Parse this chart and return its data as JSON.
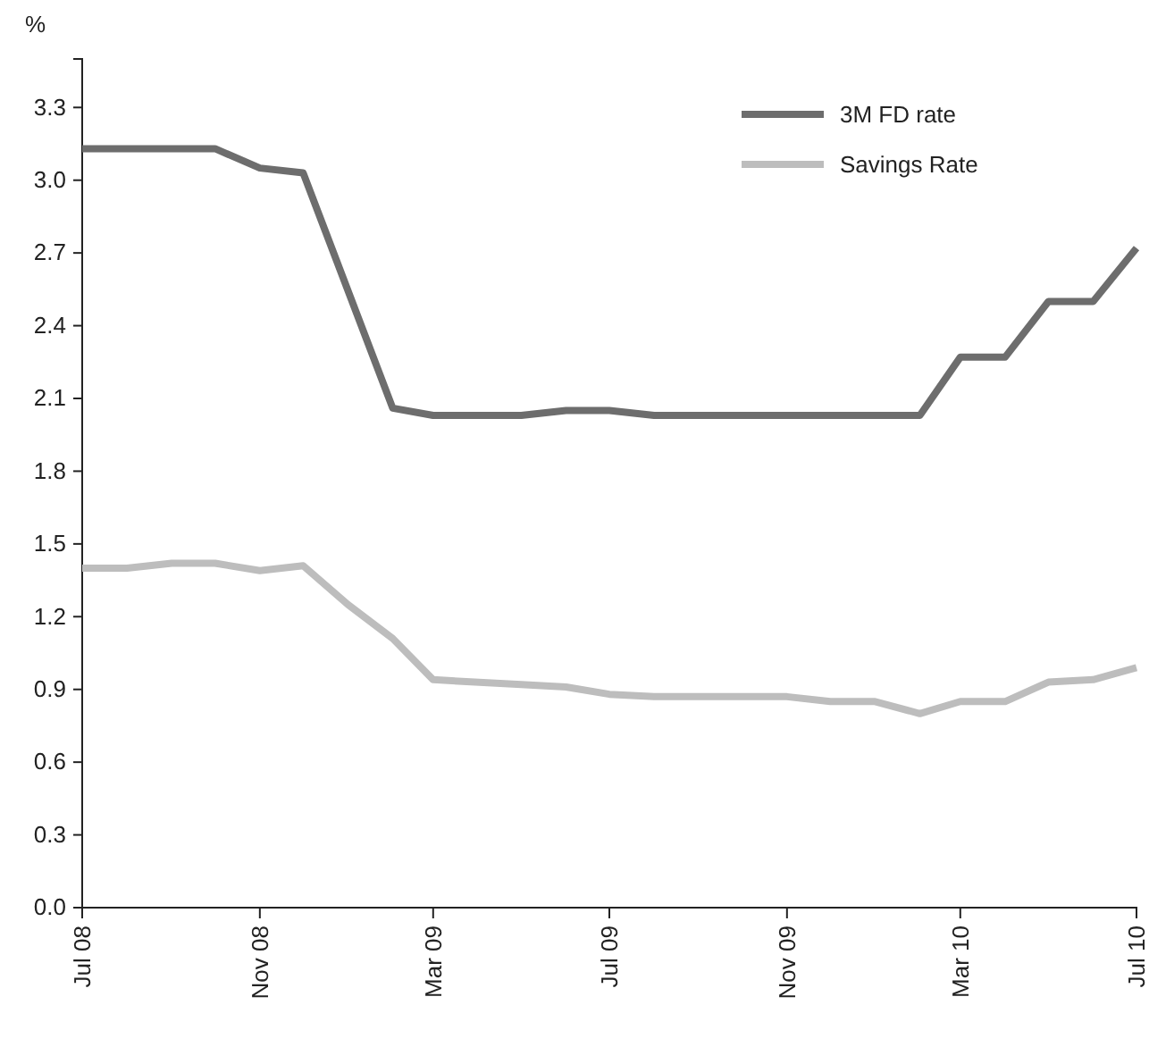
{
  "chart_data": {
    "type": "line",
    "ylabel": "%",
    "legend": "top right",
    "line_style": "solid",
    "xlim": [
      "2008-07",
      "2010-07"
    ],
    "xticks": [
      {
        "value": "2008-07",
        "label": "Jul 08"
      },
      {
        "value": "2008-11",
        "label": "Nov 08"
      },
      {
        "value": "2009-03",
        "label": "Mar 09"
      },
      {
        "value": "2009-07",
        "label": "Jul 09"
      },
      {
        "value": "2009-11",
        "label": "Nov 09"
      },
      {
        "value": "2010-03",
        "label": "Mar 10"
      },
      {
        "value": "2010-07",
        "label": "Jul 10"
      }
    ],
    "ylim": [
      0,
      3.5
    ],
    "yticks": [
      {
        "value": 0,
        "label": "0.0"
      },
      {
        "value": 0.3,
        "label": "0.3"
      },
      {
        "value": 0.6,
        "label": "0.6"
      },
      {
        "value": 0.9,
        "label": "0.9"
      },
      {
        "value": 1.2,
        "label": "1.2"
      },
      {
        "value": 1.5,
        "label": "1.5"
      },
      {
        "value": 1.8,
        "label": "1.8"
      },
      {
        "value": 2.1,
        "label": "2.1"
      },
      {
        "value": 2.4,
        "label": "2.4"
      },
      {
        "value": 2.7,
        "label": "2.7"
      },
      {
        "value": 3.0,
        "label": "3.0"
      },
      {
        "value": 3.3,
        "label": "3.3"
      }
    ],
    "series": [
      {
        "name": "3M FD rate",
        "color": "#6d6d6d",
        "x": [
          "2008-07",
          "2008-10",
          "2008-11",
          "2008-12",
          "2009-02",
          "2009-03",
          "2009-05",
          "2009-06",
          "2009-07",
          "2009-08",
          "2010-02",
          "2010-03",
          "2010-04",
          "2010-05",
          "2010-06",
          "2010-07"
        ],
        "values": [
          3.13,
          3.13,
          3.05,
          3.03,
          2.06,
          2.03,
          2.03,
          2.05,
          2.05,
          2.03,
          2.03,
          2.27,
          2.27,
          2.5,
          2.5,
          2.72
        ]
      },
      {
        "name": "Savings Rate",
        "color": "#bdbdbd",
        "x": [
          "2008-07",
          "2008-08",
          "2008-09",
          "2008-10",
          "2008-11",
          "2008-12",
          "2009-01",
          "2009-02",
          "2009-03",
          "2009-05",
          "2009-06",
          "2009-07",
          "2009-08",
          "2009-11",
          "2009-12",
          "2010-01",
          "2010-02",
          "2010-03",
          "2010-04",
          "2010-05",
          "2010-06",
          "2010-07"
        ],
        "values": [
          1.4,
          1.4,
          1.42,
          1.42,
          1.39,
          1.41,
          1.25,
          1.11,
          0.94,
          0.92,
          0.91,
          0.88,
          0.87,
          0.87,
          0.85,
          0.85,
          0.8,
          0.85,
          0.85,
          0.93,
          0.94,
          0.99
        ]
      }
    ]
  }
}
